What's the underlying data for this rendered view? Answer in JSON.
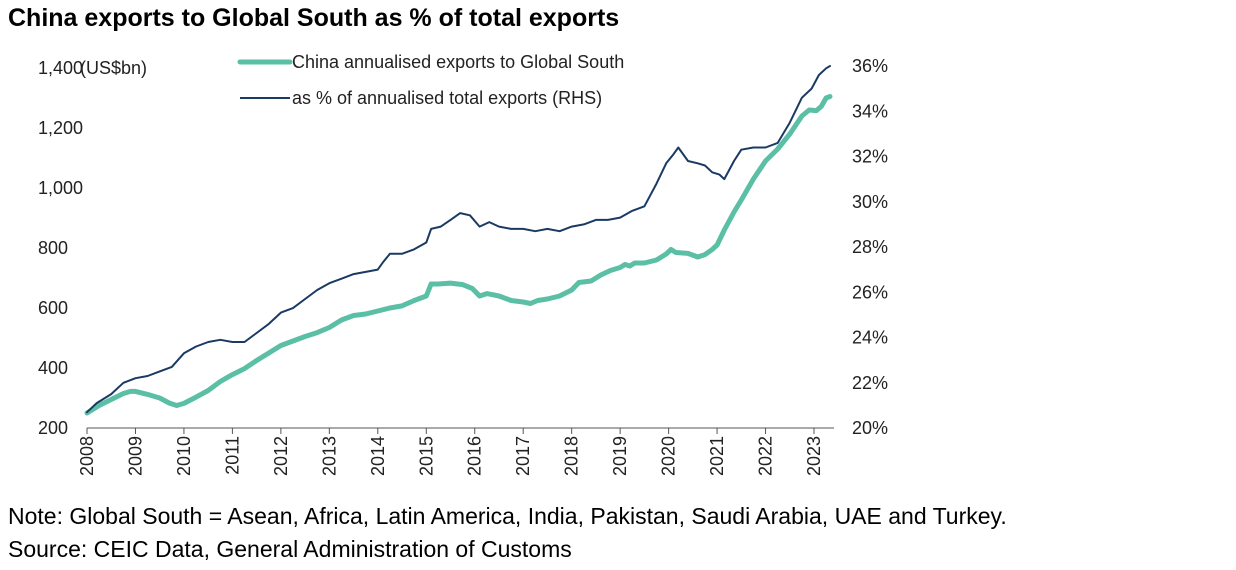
{
  "title": "China exports to Global South as % of total exports",
  "notes": {
    "note": "Note: Global South = Asean, Africa, Latin America, India, Pakistan, Saudi Arabia, UAE and Turkey.",
    "source": "Source: CEIC Data, General Administration of Customs"
  },
  "colors": {
    "series_exports": "#5bbfa6",
    "series_share": "#1a3a63"
  },
  "chart_data": {
    "type": "line",
    "title": "China exports to Global South as % of total exports",
    "left_axis": {
      "unit_label": "(US$bn)",
      "ticks": [
        200,
        400,
        600,
        800,
        1000,
        1200,
        1400
      ],
      "tick_labels": [
        "200",
        "400",
        "600",
        "800",
        "1,000",
        "1,200",
        "1,400"
      ],
      "ylim": [
        200,
        1400
      ]
    },
    "right_axis": {
      "ticks": [
        20,
        22,
        24,
        26,
        28,
        30,
        32,
        34,
        36
      ],
      "tick_labels": [
        "20%",
        "22%",
        "24%",
        "26%",
        "28%",
        "30%",
        "32%",
        "34%",
        "36%"
      ],
      "ylim": [
        20,
        36
      ]
    },
    "x_axis": {
      "tick_labels": [
        "2008",
        "2009",
        "2010",
        "2011",
        "2012",
        "2013",
        "2014",
        "2015",
        "2016",
        "2017",
        "2018",
        "2019",
        "2020",
        "2021",
        "2022",
        "2023"
      ],
      "xlim": [
        2008.0,
        2023.33
      ]
    },
    "legend": {
      "position": "top-center"
    },
    "grid": false,
    "series": [
      {
        "name": "China annualised exports to Global South",
        "axis": "left",
        "points": [
          [
            2008.0,
            250
          ],
          [
            2008.25,
            275
          ],
          [
            2008.5,
            295
          ],
          [
            2008.75,
            315
          ],
          [
            2008.9,
            322
          ],
          [
            2009.0,
            322
          ],
          [
            2009.25,
            312
          ],
          [
            2009.5,
            300
          ],
          [
            2009.7,
            283
          ],
          [
            2009.85,
            275
          ],
          [
            2010.0,
            282
          ],
          [
            2010.25,
            303
          ],
          [
            2010.5,
            325
          ],
          [
            2010.75,
            355
          ],
          [
            2011.0,
            378
          ],
          [
            2011.25,
            398
          ],
          [
            2011.5,
            425
          ],
          [
            2011.75,
            450
          ],
          [
            2012.0,
            475
          ],
          [
            2012.25,
            490
          ],
          [
            2012.5,
            505
          ],
          [
            2012.75,
            518
          ],
          [
            2013.0,
            535
          ],
          [
            2013.25,
            560
          ],
          [
            2013.5,
            575
          ],
          [
            2013.75,
            580
          ],
          [
            2014.0,
            590
          ],
          [
            2014.25,
            600
          ],
          [
            2014.5,
            607
          ],
          [
            2014.75,
            625
          ],
          [
            2015.0,
            640
          ],
          [
            2015.1,
            680
          ],
          [
            2015.25,
            680
          ],
          [
            2015.5,
            683
          ],
          [
            2015.75,
            678
          ],
          [
            2015.95,
            665
          ],
          [
            2016.1,
            640
          ],
          [
            2016.25,
            648
          ],
          [
            2016.5,
            640
          ],
          [
            2016.75,
            625
          ],
          [
            2017.0,
            620
          ],
          [
            2017.15,
            615
          ],
          [
            2017.3,
            625
          ],
          [
            2017.5,
            630
          ],
          [
            2017.75,
            640
          ],
          [
            2018.0,
            660
          ],
          [
            2018.15,
            685
          ],
          [
            2018.4,
            690
          ],
          [
            2018.6,
            710
          ],
          [
            2018.8,
            725
          ],
          [
            2019.0,
            735
          ],
          [
            2019.1,
            745
          ],
          [
            2019.2,
            740
          ],
          [
            2019.3,
            750
          ],
          [
            2019.5,
            750
          ],
          [
            2019.75,
            760
          ],
          [
            2019.95,
            780
          ],
          [
            2020.05,
            795
          ],
          [
            2020.15,
            785
          ],
          [
            2020.4,
            782
          ],
          [
            2020.6,
            770
          ],
          [
            2020.75,
            778
          ],
          [
            2020.9,
            795
          ],
          [
            2021.0,
            810
          ],
          [
            2021.15,
            860
          ],
          [
            2021.35,
            920
          ],
          [
            2021.5,
            960
          ],
          [
            2021.75,
            1030
          ],
          [
            2022.0,
            1090
          ],
          [
            2022.25,
            1130
          ],
          [
            2022.5,
            1180
          ],
          [
            2022.75,
            1240
          ],
          [
            2022.9,
            1260
          ],
          [
            2023.05,
            1258
          ],
          [
            2023.15,
            1272
          ],
          [
            2023.25,
            1300
          ],
          [
            2023.33,
            1305
          ]
        ]
      },
      {
        "name": "as % of annualised total exports (RHS)",
        "axis": "right",
        "points": [
          [
            2008.0,
            20.7
          ],
          [
            2008.2,
            21.1
          ],
          [
            2008.5,
            21.5
          ],
          [
            2008.75,
            22.0
          ],
          [
            2009.0,
            22.2
          ],
          [
            2009.25,
            22.3
          ],
          [
            2009.5,
            22.5
          ],
          [
            2009.75,
            22.7
          ],
          [
            2010.0,
            23.3
          ],
          [
            2010.25,
            23.6
          ],
          [
            2010.5,
            23.8
          ],
          [
            2010.75,
            23.9
          ],
          [
            2011.0,
            23.8
          ],
          [
            2011.25,
            23.8
          ],
          [
            2011.5,
            24.2
          ],
          [
            2011.75,
            24.6
          ],
          [
            2012.0,
            25.1
          ],
          [
            2012.25,
            25.3
          ],
          [
            2012.5,
            25.7
          ],
          [
            2012.75,
            26.1
          ],
          [
            2013.0,
            26.4
          ],
          [
            2013.25,
            26.6
          ],
          [
            2013.5,
            26.8
          ],
          [
            2013.75,
            26.9
          ],
          [
            2014.0,
            27.0
          ],
          [
            2014.1,
            27.3
          ],
          [
            2014.25,
            27.7
          ],
          [
            2014.5,
            27.7
          ],
          [
            2014.75,
            27.9
          ],
          [
            2015.0,
            28.2
          ],
          [
            2015.1,
            28.8
          ],
          [
            2015.3,
            28.9
          ],
          [
            2015.5,
            29.2
          ],
          [
            2015.7,
            29.5
          ],
          [
            2015.9,
            29.4
          ],
          [
            2016.1,
            28.9
          ],
          [
            2016.3,
            29.1
          ],
          [
            2016.5,
            28.9
          ],
          [
            2016.75,
            28.8
          ],
          [
            2017.0,
            28.8
          ],
          [
            2017.25,
            28.7
          ],
          [
            2017.5,
            28.8
          ],
          [
            2017.75,
            28.7
          ],
          [
            2018.0,
            28.9
          ],
          [
            2018.25,
            29.0
          ],
          [
            2018.5,
            29.2
          ],
          [
            2018.75,
            29.2
          ],
          [
            2019.0,
            29.3
          ],
          [
            2019.25,
            29.6
          ],
          [
            2019.5,
            29.8
          ],
          [
            2019.75,
            30.8
          ],
          [
            2019.95,
            31.7
          ],
          [
            2020.1,
            32.1
          ],
          [
            2020.2,
            32.4
          ],
          [
            2020.4,
            31.8
          ],
          [
            2020.6,
            31.7
          ],
          [
            2020.75,
            31.6
          ],
          [
            2020.9,
            31.3
          ],
          [
            2021.05,
            31.2
          ],
          [
            2021.15,
            31.0
          ],
          [
            2021.35,
            31.8
          ],
          [
            2021.5,
            32.3
          ],
          [
            2021.75,
            32.4
          ],
          [
            2022.0,
            32.4
          ],
          [
            2022.25,
            32.6
          ],
          [
            2022.5,
            33.5
          ],
          [
            2022.75,
            34.6
          ],
          [
            2022.95,
            35.0
          ],
          [
            2023.1,
            35.6
          ],
          [
            2023.25,
            35.9
          ],
          [
            2023.33,
            36.0
          ]
        ]
      }
    ]
  }
}
